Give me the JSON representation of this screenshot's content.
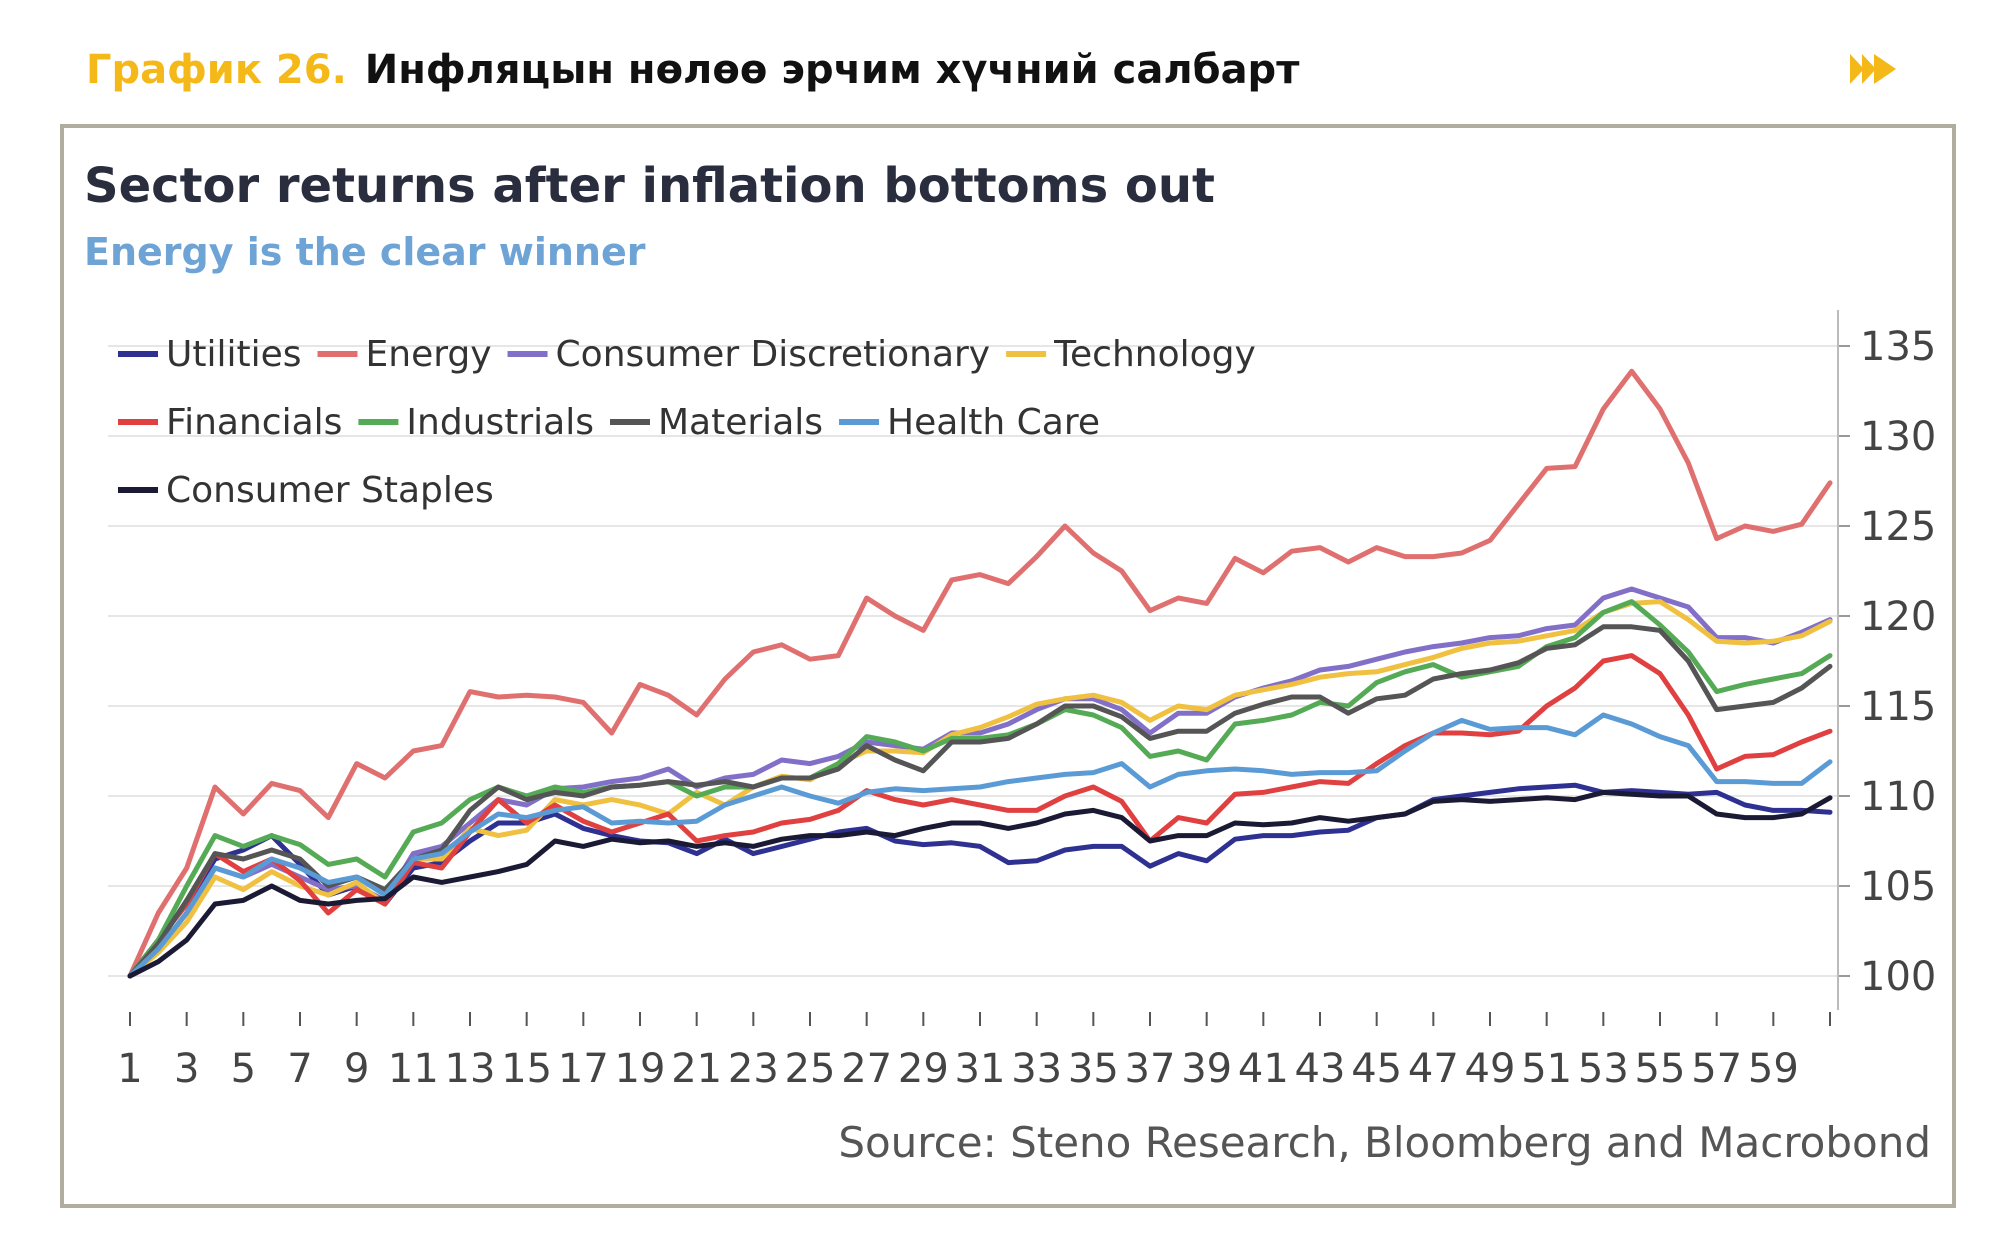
{
  "header": {
    "label": "График 26.",
    "title": "Инфляцын нөлөө эрчим хүчний салбарт"
  },
  "colors": {
    "header_label": "#f5b819",
    "frame": "#b0aca0"
  },
  "chart_data": {
    "type": "line",
    "title": "Sector returns after inflation bottoms out",
    "subtitle": "Energy is the clear winner",
    "source": "Source: Steno Research, Bloomberg and Macrobond",
    "xlabel": "",
    "ylabel": "",
    "y_axis_side": "right",
    "ylim": [
      98,
      136
    ],
    "yticks": [
      100,
      105,
      110,
      115,
      120,
      125,
      130,
      135
    ],
    "xlim": [
      1,
      61
    ],
    "xtick_labels": [
      "1",
      "3",
      "5",
      "7",
      "9",
      "11",
      "13",
      "15",
      "17",
      "19",
      "21",
      "23",
      "25",
      "27",
      "29",
      "31",
      "33",
      "35",
      "37",
      "39",
      "41",
      "43",
      "45",
      "47",
      "49",
      "51",
      "53",
      "55",
      "57",
      "59"
    ],
    "grid": "horizontal",
    "legend_position": "top-left",
    "series": [
      {
        "name": "Utilities",
        "color": "#2e3192",
        "values": [
          100,
          102,
          104,
          106.5,
          107,
          107.8,
          106.2,
          104.5,
          105,
          104,
          106,
          106.3,
          107.5,
          108.5,
          108.5,
          109,
          108.2,
          107.8,
          107.5,
          107.4,
          106.8,
          107.6,
          106.8,
          107.2,
          107.6,
          108,
          108.2,
          107.5,
          107.3,
          107.4,
          107.2,
          106.3,
          106.4,
          107,
          107.2,
          107.2,
          106.1,
          106.8,
          106.4,
          107.6,
          107.8,
          107.8,
          108,
          108.1,
          108.8,
          109,
          109.8,
          110,
          110.2,
          110.4,
          110.5,
          110.6,
          110.2,
          110.3,
          110.2,
          110.1,
          110.2,
          109.5,
          109.2,
          109.2,
          109.1
        ]
      },
      {
        "name": "Energy",
        "color": "#e07070",
        "values": [
          100,
          103.5,
          106,
          110.5,
          109,
          110.7,
          110.3,
          108.8,
          111.8,
          111,
          112.5,
          112.8,
          115.8,
          115.5,
          115.6,
          115.5,
          115.2,
          113.5,
          116.2,
          115.6,
          114.5,
          116.5,
          118,
          118.4,
          117.6,
          117.8,
          121,
          120,
          119.2,
          122,
          122.3,
          121.8,
          123.3,
          125,
          123.5,
          122.5,
          120.3,
          121,
          120.7,
          123.2,
          122.4,
          123.6,
          123.8,
          123,
          123.8,
          123.3,
          123.3,
          123.5,
          124.2,
          126.2,
          128.2,
          128.3,
          131.5,
          133.6,
          131.5,
          128.5,
          124.3,
          125,
          124.7,
          125.1,
          127.4
        ]
      },
      {
        "name": "Consumer Discretionary",
        "color": "#8270c8",
        "values": [
          100,
          101.5,
          103.5,
          106,
          105.5,
          106.2,
          105.5,
          104.8,
          105,
          104.2,
          106.8,
          107.2,
          108.5,
          109.8,
          109.5,
          110.4,
          110.5,
          110.8,
          111,
          111.5,
          110.5,
          111,
          111.2,
          112,
          111.8,
          112.2,
          113,
          112.8,
          112.6,
          113.5,
          113.5,
          114,
          114.8,
          115.4,
          115.4,
          114.8,
          113.5,
          114.6,
          114.6,
          115.5,
          116,
          116.4,
          117,
          117.2,
          117.6,
          118,
          118.3,
          118.5,
          118.8,
          118.9,
          119.3,
          119.5,
          121,
          121.5,
          121,
          120.5,
          118.8,
          118.8,
          118.5,
          119.1,
          119.8
        ]
      },
      {
        "name": "Technology",
        "color": "#f0c040",
        "values": [
          100,
          101.3,
          103,
          105.5,
          104.8,
          105.8,
          105,
          104.5,
          105.2,
          104,
          106.5,
          106.5,
          108.2,
          107.8,
          108.1,
          109.8,
          109.5,
          109.8,
          109.5,
          109,
          110.2,
          109.5,
          110.5,
          111.1,
          110.9,
          111.8,
          112.5,
          112.5,
          112.4,
          113.4,
          113.8,
          114.4,
          115.1,
          115.4,
          115.6,
          115.2,
          114.2,
          115,
          114.8,
          115.6,
          115.9,
          116.2,
          116.6,
          116.8,
          116.9,
          117.3,
          117.7,
          118.2,
          118.5,
          118.6,
          118.9,
          119.2,
          120.2,
          120.7,
          120.8,
          119.8,
          118.6,
          118.5,
          118.6,
          118.9,
          119.7
        ]
      },
      {
        "name": "Financials",
        "color": "#e04040",
        "values": [
          100,
          102,
          104,
          106.8,
          105.8,
          106.5,
          105.3,
          103.5,
          104.8,
          104,
          106.3,
          106,
          108,
          109.8,
          108.5,
          109.5,
          108.6,
          108,
          108.5,
          109,
          107.5,
          107.8,
          108,
          108.5,
          108.7,
          109.2,
          110.3,
          109.8,
          109.5,
          109.8,
          109.5,
          109.2,
          109.2,
          110,
          110.5,
          109.7,
          107.5,
          108.8,
          108.5,
          110.1,
          110.2,
          110.5,
          110.8,
          110.7,
          111.8,
          112.8,
          113.5,
          113.5,
          113.4,
          113.6,
          115,
          116,
          117.5,
          117.8,
          116.8,
          114.5,
          111.5,
          112.2,
          112.3,
          113,
          113.6
        ]
      },
      {
        "name": "Industrials",
        "color": "#55aa55",
        "values": [
          100,
          102,
          105,
          107.8,
          107.2,
          107.8,
          107.3,
          106.2,
          106.5,
          105.5,
          108,
          108.5,
          109.8,
          110.5,
          110,
          110.5,
          110.2,
          110.5,
          110.6,
          110.8,
          110,
          110.5,
          110.5,
          111,
          111,
          111.8,
          113.3,
          113,
          112.5,
          113.2,
          113.2,
          113.4,
          114,
          114.8,
          114.5,
          113.8,
          112.2,
          112.5,
          112,
          114,
          114.2,
          114.5,
          115.2,
          115,
          116.3,
          116.9,
          117.3,
          116.6,
          116.9,
          117.2,
          118.3,
          118.8,
          120.2,
          120.8,
          119.5,
          118,
          115.8,
          116.2,
          116.5,
          116.8,
          117.8
        ]
      },
      {
        "name": "Materials",
        "color": "#555555",
        "values": [
          100,
          101.8,
          104.2,
          106.8,
          106.5,
          107,
          106.5,
          105,
          105.5,
          104.8,
          106.5,
          107,
          109.2,
          110.5,
          109.8,
          110.2,
          110,
          110.5,
          110.6,
          110.8,
          110.6,
          110.8,
          110.5,
          111,
          111,
          111.5,
          112.8,
          112,
          111.4,
          113,
          113,
          113.2,
          114,
          115,
          115,
          114.4,
          113.2,
          113.6,
          113.6,
          114.6,
          115.1,
          115.5,
          115.5,
          114.6,
          115.4,
          115.6,
          116.5,
          116.8,
          117,
          117.4,
          118.2,
          118.4,
          119.4,
          119.4,
          119.2,
          117.5,
          114.8,
          115,
          115.2,
          116,
          117.2
        ]
      },
      {
        "name": "Health Care",
        "color": "#5b9bd5",
        "values": [
          100,
          101.5,
          103.5,
          106,
          105.5,
          106.5,
          106,
          105.2,
          105.5,
          104.5,
          106.5,
          106.8,
          108,
          109,
          108.8,
          109.2,
          109.4,
          108.5,
          108.6,
          108.5,
          108.6,
          109.5,
          110,
          110.5,
          110,
          109.6,
          110.2,
          110.4,
          110.3,
          110.4,
          110.5,
          110.8,
          111,
          111.2,
          111.3,
          111.8,
          110.5,
          111.2,
          111.4,
          111.5,
          111.4,
          111.2,
          111.3,
          111.3,
          111.4,
          112.5,
          113.5,
          114.2,
          113.7,
          113.8,
          113.8,
          113.4,
          114.5,
          114,
          113.3,
          112.8,
          110.8,
          110.8,
          110.7,
          110.7,
          111.9
        ]
      },
      {
        "name": "Consumer Staples",
        "color": "#1a1a35",
        "values": [
          100,
          100.8,
          102,
          104,
          104.2,
          105,
          104.2,
          104,
          104.2,
          104.3,
          105.5,
          105.2,
          105.5,
          105.8,
          106.2,
          107.5,
          107.2,
          107.6,
          107.4,
          107.5,
          107.2,
          107.4,
          107.2,
          107.6,
          107.8,
          107.8,
          108,
          107.8,
          108.2,
          108.5,
          108.5,
          108.2,
          108.5,
          109,
          109.2,
          108.8,
          107.5,
          107.8,
          107.8,
          108.5,
          108.4,
          108.5,
          108.8,
          108.6,
          108.8,
          109,
          109.7,
          109.8,
          109.7,
          109.8,
          109.9,
          109.8,
          110.2,
          110.1,
          110,
          110,
          109,
          108.8,
          108.8,
          109,
          109.9
        ]
      }
    ]
  }
}
